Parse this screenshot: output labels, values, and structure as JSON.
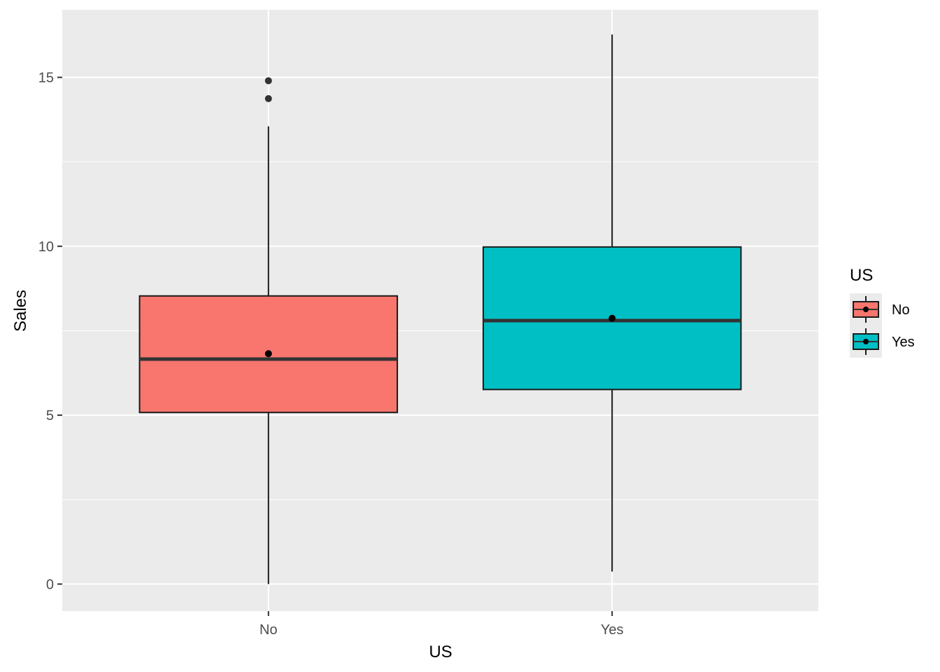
{
  "chart_data": {
    "type": "boxplot",
    "xlabel": "US",
    "ylabel": "Sales",
    "categories": [
      "No",
      "Yes"
    ],
    "ylim": [
      -0.8,
      17.0
    ],
    "y_ticks": [
      0,
      5,
      10,
      15
    ],
    "y_tick_labels": [
      "0",
      "5",
      "10",
      "15"
    ],
    "grid": true,
    "boxes": [
      {
        "category": "No",
        "color": "#F8766D",
        "whisker_low": 0.0,
        "q1": 5.08,
        "median": 6.66,
        "q3": 8.53,
        "whisker_high": 13.55,
        "mean": 6.82,
        "outliers": [
          14.37,
          14.9
        ]
      },
      {
        "category": "Yes",
        "color": "#00BFC4",
        "whisker_low": 0.37,
        "q1": 5.76,
        "median": 7.8,
        "q3": 9.98,
        "whisker_high": 16.27,
        "mean": 7.87,
        "outliers": []
      }
    ],
    "legend": {
      "title": "US",
      "position": "right",
      "items": [
        {
          "label": "No",
          "color": "#F8766D"
        },
        {
          "label": "Yes",
          "color": "#00BFC4"
        }
      ]
    }
  }
}
